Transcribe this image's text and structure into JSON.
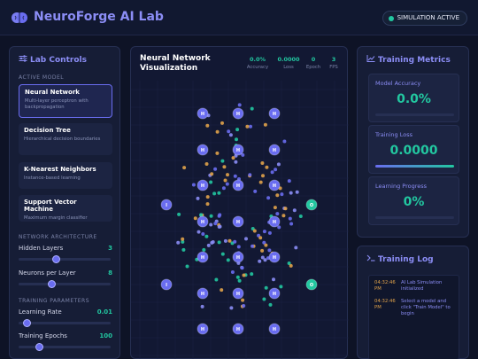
{
  "header": {
    "title": "NeuroForge AI Lab",
    "status": "SIMULATION ACTIVE",
    "brand_icon": "brain-icon"
  },
  "controls": {
    "title": "Lab Controls",
    "active_model_label": "ACTIVE MODEL",
    "models": [
      {
        "name": "Neural Network",
        "desc": "Multi-layer perceptron with backpropagation",
        "active": true
      },
      {
        "name": "Decision Tree",
        "desc": "Hierarchical decision boundaries",
        "active": false
      },
      {
        "name": "K-Nearest Neighbors",
        "desc": "Instance-based learning",
        "active": false
      },
      {
        "name": "Support Vector Machine",
        "desc": "Maximum margin classifier",
        "active": false
      }
    ],
    "arch_label": "NETWORK ARCHITECTURE",
    "hidden_layers": {
      "label": "Hidden Layers",
      "value": "3",
      "level": 0.4
    },
    "neurons": {
      "label": "Neurons per Layer",
      "value": "8",
      "level": 0.35
    },
    "train_label": "TRAINING PARAMETERS",
    "learning_rate": {
      "label": "Learning Rate",
      "value": "0.01",
      "level": 0.05
    },
    "epochs": {
      "label": "Training Epochs",
      "value": "100",
      "level": 0.2
    }
  },
  "viz": {
    "title": "Neural Network Visualization",
    "stats": [
      {
        "value": "0.0%",
        "label": "Accuracy"
      },
      {
        "value": "0.0000",
        "label": "Loss"
      },
      {
        "value": "0",
        "label": "Epoch"
      },
      {
        "value": "3",
        "label": "FPS"
      }
    ],
    "input_label": "I",
    "hidden_label": "H",
    "output_label": "O"
  },
  "metrics": {
    "title": "Training Metrics",
    "accuracy": {
      "label": "Model Accuracy",
      "value": "0.0%",
      "fill": 0.0
    },
    "loss": {
      "label": "Training Loss",
      "value": "0.0000",
      "fill": 1.0
    },
    "progress": {
      "label": "Learning Progress",
      "value": "0%",
      "fill": 0.0
    }
  },
  "log": {
    "title": "Training Log",
    "entries": [
      {
        "time": "04:32:46 PM",
        "msg": "AI Lab Simulation initialized"
      },
      {
        "time": "04:32:46 PM",
        "msg": "Select a model and click \"Train Model\" to begin"
      }
    ]
  },
  "colors": {
    "accent": "#6a6df0",
    "teal": "#22c7a0",
    "orange": "#e0a24a",
    "bg": "#0e1326"
  }
}
